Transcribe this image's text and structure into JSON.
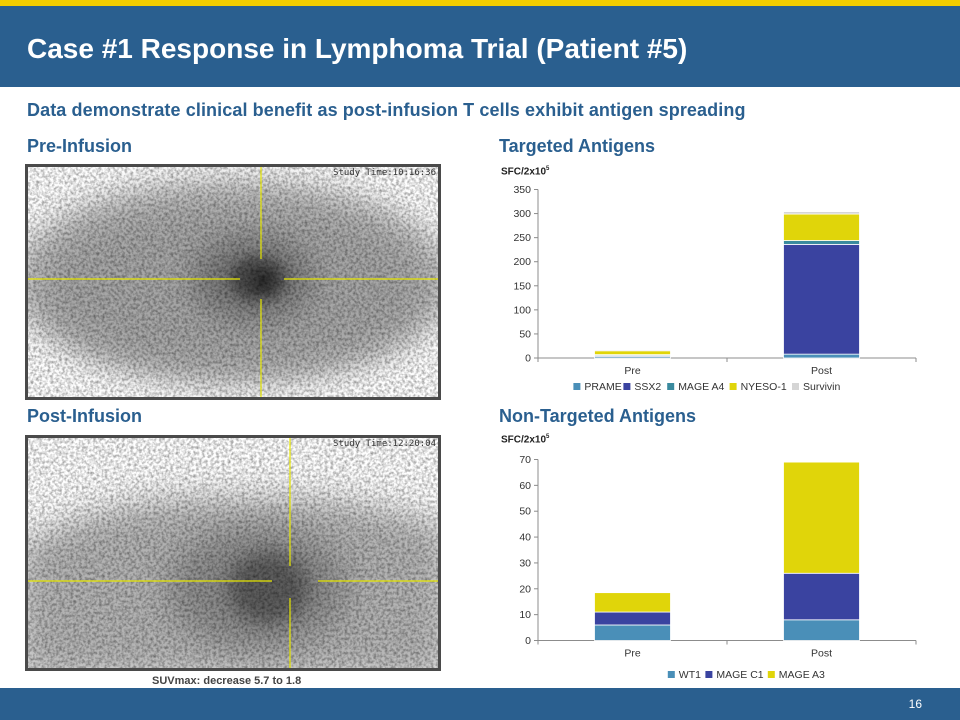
{
  "slide": {
    "title": "Case #1 Response in Lymphoma Trial (Patient #5)",
    "subtitle": "Data demonstrate clinical benefit as post-infusion T cells exhibit antigen spreading",
    "page_number": "16"
  },
  "colors": {
    "header": "#2a5f8f",
    "accent_bar": "#f2cd00",
    "label": "#2a5f8f",
    "series_teal": "#4a8fb8",
    "series_navy": "#3a43a0",
    "series_teal2": "#3a8a9e",
    "series_yellow": "#e0d50a",
    "series_gray": "#d5d5d5"
  },
  "panels": {
    "pre_label": "Pre-Infusion",
    "post_label": "Post-Infusion",
    "targeted_label": "Targeted Antigens",
    "nontargeted_label": "Non-Targeted Antigens"
  },
  "scans": {
    "pre_study_time": "Study Time:10:16:36",
    "post_study_time": "Study Time:12:20:04",
    "suv_note": "SUVmax: decrease 5.7 to 1.8"
  },
  "chart_data": [
    {
      "type": "bar",
      "stacked": true,
      "title": "Targeted Antigens",
      "ylabel": "SFC/2x10",
      "ylabel_superscript": "5",
      "categories": [
        "Pre",
        "Post"
      ],
      "ylim": [
        0,
        350
      ],
      "yticks": [
        0,
        50,
        100,
        150,
        200,
        250,
        300,
        350
      ],
      "grid": false,
      "legend": "bottom",
      "series": [
        {
          "name": "PRAME",
          "color": "#4a8fb8",
          "values": [
            3,
            8
          ]
        },
        {
          "name": "SSX2",
          "color": "#3a43a0",
          "values": [
            2,
            228
          ]
        },
        {
          "name": "MAGE A4",
          "color": "#3a8a9e",
          "values": [
            2,
            8
          ]
        },
        {
          "name": "NYESO-1",
          "color": "#e0d50a",
          "values": [
            8,
            55
          ]
        },
        {
          "name": "Survivin",
          "color": "#d5d5d5",
          "values": [
            2,
            5
          ]
        }
      ]
    },
    {
      "type": "bar",
      "stacked": true,
      "title": "Non-Targeted Antigens",
      "ylabel": "SFC/2x10",
      "ylabel_superscript": "5",
      "categories": [
        "Pre",
        "Post"
      ],
      "ylim": [
        0,
        70
      ],
      "yticks": [
        0,
        10,
        20,
        30,
        40,
        50,
        60,
        70
      ],
      "grid": false,
      "legend": "bottom",
      "series": [
        {
          "name": "WT1",
          "color": "#4a8fb8",
          "values": [
            6,
            8
          ]
        },
        {
          "name": "MAGE C1",
          "color": "#3a43a0",
          "values": [
            5,
            18
          ]
        },
        {
          "name": "MAGE A3",
          "color": "#e0d50a",
          "values": [
            7.5,
            43
          ]
        }
      ]
    }
  ]
}
